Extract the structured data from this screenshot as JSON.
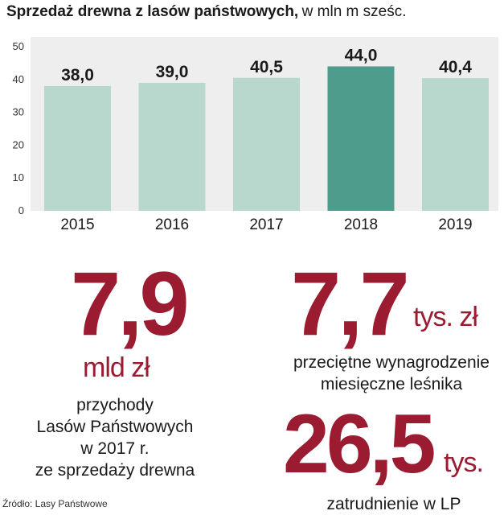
{
  "header": {
    "title_bold": "Sprzedaż drewna z lasów państwowych,",
    "title_unit": "w  mln m sześc."
  },
  "chart_data": {
    "type": "bar",
    "title": "Sprzedaż drewna z lasów państwowych, w mln m sześc.",
    "categories": [
      "2015",
      "2016",
      "2017",
      "2018",
      "2019"
    ],
    "values": [
      38.0,
      39.0,
      40.5,
      44.0,
      40.4
    ],
    "value_labels": [
      "38,0",
      "39,0",
      "40,5",
      "44,0",
      "40,4"
    ],
    "highlight_index": 3,
    "ylim": [
      0,
      50
    ],
    "yticks": [
      0,
      10,
      20,
      30,
      40,
      50
    ],
    "xlabel": "",
    "ylabel": "",
    "grid": false,
    "colors": {
      "bar": "#b8d8cd",
      "highlight": "#4e9c8c",
      "panel": "#eeeeee"
    }
  },
  "stats": {
    "revenue": {
      "value": "7,9",
      "unit": "mld zł",
      "lines": [
        "przychody",
        "Lasów Państwowych",
        "w 2017 r.",
        "ze sprzedaży drewna"
      ]
    },
    "salary": {
      "value": "7,7",
      "unit": "tys. zł",
      "lines": [
        "przeciętne wynagrodzenie",
        "miesięczne leśnika"
      ]
    },
    "employment": {
      "value": "26,5",
      "unit": "tys.",
      "lines": [
        "zatrudnienie w LP"
      ]
    }
  },
  "source": "Źródło: Lasy Państwowe",
  "colors": {
    "accent": "#9b1b30",
    "text": "#1a1a1a"
  }
}
